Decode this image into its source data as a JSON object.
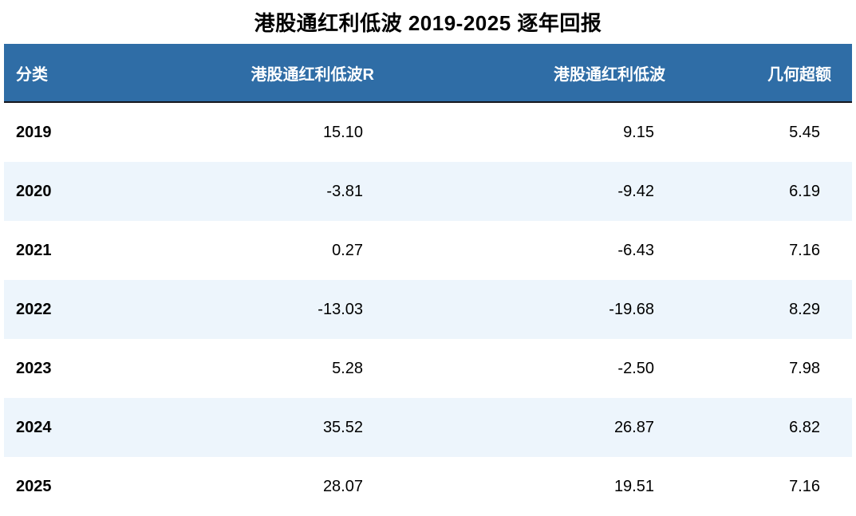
{
  "page_title": "港股通红利低波 2019-2025 逐年回报",
  "table": {
    "columns": [
      {
        "label": "分类"
      },
      {
        "label": "港股通红利低波R"
      },
      {
        "label": "港股通红利低波"
      },
      {
        "label": "几何超额"
      }
    ],
    "rows": [
      {
        "category": "2019",
        "hk_dividend_lowvol_r": "15.10",
        "hk_dividend_lowvol": "9.15",
        "geometric_excess": "5.45"
      },
      {
        "category": "2020",
        "hk_dividend_lowvol_r": "-3.81",
        "hk_dividend_lowvol": "-9.42",
        "geometric_excess": "6.19"
      },
      {
        "category": "2021",
        "hk_dividend_lowvol_r": "0.27",
        "hk_dividend_lowvol": "-6.43",
        "geometric_excess": "7.16"
      },
      {
        "category": "2022",
        "hk_dividend_lowvol_r": "-13.03",
        "hk_dividend_lowvol": "-19.68",
        "geometric_excess": "8.29"
      },
      {
        "category": "2023",
        "hk_dividend_lowvol_r": "5.28",
        "hk_dividend_lowvol": "-2.50",
        "geometric_excess": "7.98"
      },
      {
        "category": "2024",
        "hk_dividend_lowvol_r": "35.52",
        "hk_dividend_lowvol": "26.87",
        "geometric_excess": "6.82"
      },
      {
        "category": "2025",
        "hk_dividend_lowvol_r": "28.07",
        "hk_dividend_lowvol": "19.51",
        "geometric_excess": "7.16"
      }
    ]
  },
  "chart_data": {
    "type": "table",
    "title": "港股通红利低波 2019-2025 逐年回报",
    "columns": [
      "分类",
      "港股通红利低波R",
      "港股通红利低波",
      "几何超额"
    ],
    "rows": [
      [
        "2019",
        15.1,
        9.15,
        5.45
      ],
      [
        "2020",
        -3.81,
        -9.42,
        6.19
      ],
      [
        "2021",
        0.27,
        -6.43,
        7.16
      ],
      [
        "2022",
        -13.03,
        -19.68,
        8.29
      ],
      [
        "2023",
        5.28,
        -2.5,
        7.98
      ],
      [
        "2024",
        35.52,
        26.87,
        6.82
      ],
      [
        "2025",
        28.07,
        19.51,
        7.16
      ]
    ]
  },
  "colors": {
    "header_bg": "#2F6DA6",
    "header_text": "#FFFFFF",
    "row_alt_bg": "#EDF5FC",
    "header_border": "#16161D",
    "title_text": "#000000"
  }
}
